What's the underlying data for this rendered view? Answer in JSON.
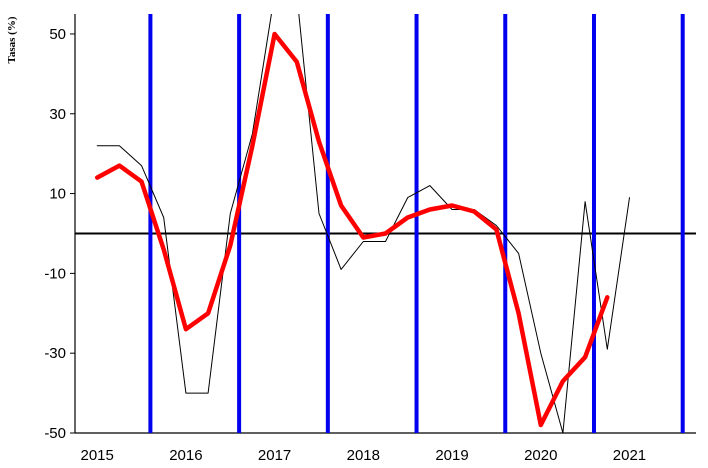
{
  "chart_data": {
    "type": "line",
    "ylabel": "Tasas (%)",
    "ylim": [
      -50,
      55
    ],
    "y_ticks": [
      "50",
      "30",
      "10",
      "-10",
      "-30",
      "-50"
    ],
    "y_tick_values": [
      50,
      30,
      10,
      -10,
      -30,
      -50
    ],
    "year_labels": [
      "2015",
      "2016",
      "2017",
      "2018",
      "2019",
      "2020",
      "2021"
    ],
    "x_range": [
      2014.75,
      2021.75
    ],
    "zero_line": 0,
    "year_dividers": [
      2015.6,
      2016.6,
      2017.6,
      2018.6,
      2019.6,
      2020.6,
      2021.6
    ],
    "grid": false,
    "series": [
      {
        "color": "#000000",
        "points": [
          [
            2015.0,
            22
          ],
          [
            2015.25,
            22
          ],
          [
            2015.5,
            17
          ],
          [
            2015.75,
            4
          ],
          [
            2016.0,
            -40
          ],
          [
            2016.25,
            -40
          ],
          [
            2016.5,
            5
          ],
          [
            2016.75,
            25
          ],
          [
            2017.0,
            60
          ],
          [
            2017.25,
            60
          ],
          [
            2017.5,
            5
          ],
          [
            2017.75,
            -9
          ],
          [
            2018.0,
            -2
          ],
          [
            2018.25,
            -2
          ],
          [
            2018.5,
            9
          ],
          [
            2018.75,
            12
          ],
          [
            2019.0,
            6
          ],
          [
            2019.25,
            6
          ],
          [
            2019.5,
            2
          ],
          [
            2019.75,
            -5
          ],
          [
            2020.0,
            -30
          ],
          [
            2020.25,
            -50
          ],
          [
            2020.5,
            8
          ],
          [
            2020.75,
            -29
          ],
          [
            2021.0,
            9
          ]
        ]
      },
      {
        "color": "#ff0000",
        "points": [
          [
            2015.0,
            14
          ],
          [
            2015.25,
            17
          ],
          [
            2015.5,
            13
          ],
          [
            2015.75,
            -4
          ],
          [
            2016.0,
            -24
          ],
          [
            2016.25,
            -20
          ],
          [
            2016.5,
            -3
          ],
          [
            2016.75,
            22
          ],
          [
            2017.0,
            50
          ],
          [
            2017.25,
            43
          ],
          [
            2017.5,
            23
          ],
          [
            2017.75,
            7
          ],
          [
            2018.0,
            -1
          ],
          [
            2018.25,
            0
          ],
          [
            2018.5,
            4
          ],
          [
            2018.75,
            6
          ],
          [
            2019.0,
            7
          ],
          [
            2019.25,
            5.5
          ],
          [
            2019.5,
            1
          ],
          [
            2019.75,
            -20
          ],
          [
            2020.0,
            -48
          ],
          [
            2020.25,
            -37
          ],
          [
            2020.5,
            -31
          ],
          [
            2020.75,
            -16
          ]
        ]
      }
    ]
  }
}
